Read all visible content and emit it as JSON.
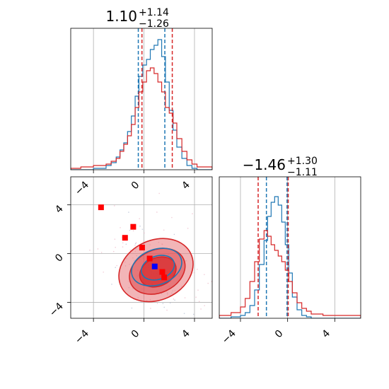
{
  "chart_data": [
    {
      "type": "histogram",
      "panel": "top-left marginal",
      "title": {
        "value": "1.10",
        "upper": "+1.14",
        "lower": "−1.26"
      },
      "xlim": [
        -5.8,
        5.4
      ],
      "xticks": [
        -4,
        0,
        4
      ],
      "xtick_labels": [
        "−4",
        "0",
        "4"
      ],
      "grid": true,
      "series": [
        {
          "color": "#1f77b4",
          "quantile_lines": [
            -0.45,
            1.65
          ],
          "bins_x": [
            -5.8,
            -5.0,
            -4.0,
            -3.0,
            -2.6,
            -2.2,
            -1.9,
            -1.6,
            -1.3,
            -1.0,
            -0.7,
            -0.4,
            -0.1,
            0.2,
            0.5,
            0.8,
            1.1,
            1.4,
            1.7,
            2.0,
            2.3,
            2.6,
            3.0,
            3.4,
            3.8,
            4.2,
            5.4
          ],
          "counts": [
            0,
            0,
            0.01,
            0.03,
            0.05,
            0.09,
            0.14,
            0.19,
            0.27,
            0.38,
            0.52,
            0.66,
            0.74,
            0.78,
            0.85,
            0.88,
            0.92,
            0.8,
            0.62,
            0.42,
            0.28,
            0.16,
            0.08,
            0.03,
            0.01,
            0.0
          ]
        },
        {
          "color": "#d62728",
          "quantile_lines": [
            -0.16,
            2.24
          ],
          "bins_x": [
            -5.8,
            -5.0,
            -4.0,
            -3.0,
            -2.6,
            -2.2,
            -1.9,
            -1.6,
            -1.3,
            -1.0,
            -0.7,
            -0.4,
            -0.1,
            0.2,
            0.5,
            0.8,
            1.1,
            1.4,
            1.7,
            2.0,
            2.3,
            2.6,
            3.0,
            3.4,
            3.8,
            4.2,
            5.4
          ],
          "counts": [
            0.01,
            0.02,
            0.03,
            0.04,
            0.06,
            0.08,
            0.13,
            0.18,
            0.24,
            0.32,
            0.44,
            0.55,
            0.62,
            0.7,
            0.72,
            0.68,
            0.62,
            0.55,
            0.44,
            0.4,
            0.33,
            0.22,
            0.13,
            0.07,
            0.04,
            0.02
          ]
        }
      ]
    },
    {
      "type": "histogram",
      "panel": "bottom-right marginal",
      "title": {
        "value": "−1.46",
        "upper": "+1.30",
        "lower": "−1.11"
      },
      "xlim": [
        -5.8,
        6.2
      ],
      "xticks": [
        -4,
        0,
        4
      ],
      "xtick_labels": [
        "−4",
        "0",
        "4"
      ],
      "grid": true,
      "series": [
        {
          "color": "#1f77b4",
          "quantile_lines": [
            -1.8,
            -0.05
          ],
          "bins_x": [
            -5.8,
            -4.8,
            -4.0,
            -3.6,
            -3.2,
            -2.8,
            -2.4,
            -2.0,
            -1.7,
            -1.4,
            -1.1,
            -0.8,
            -0.5,
            -0.2,
            0.1,
            0.4,
            0.8,
            1.2,
            1.6,
            2.0,
            3.0,
            6.2
          ],
          "counts": [
            0,
            0.01,
            0.02,
            0.04,
            0.09,
            0.2,
            0.38,
            0.55,
            0.72,
            0.82,
            0.86,
            0.8,
            0.68,
            0.52,
            0.32,
            0.15,
            0.06,
            0.02,
            0.01,
            0,
            0
          ]
        },
        {
          "color": "#d62728",
          "quantile_lines": [
            -2.5,
            0.05
          ],
          "bins_x": [
            -5.8,
            -4.8,
            -4.0,
            -3.6,
            -3.2,
            -2.8,
            -2.4,
            -2.0,
            -1.7,
            -1.4,
            -1.1,
            -0.8,
            -0.5,
            -0.2,
            0.1,
            0.4,
            0.8,
            1.2,
            1.6,
            2.0,
            3.0,
            6.2
          ],
          "counts": [
            0.02,
            0.04,
            0.08,
            0.14,
            0.26,
            0.4,
            0.56,
            0.62,
            0.58,
            0.52,
            0.48,
            0.44,
            0.4,
            0.34,
            0.26,
            0.18,
            0.11,
            0.07,
            0.05,
            0.03,
            0.02
          ]
        }
      ]
    },
    {
      "type": "scatter",
      "panel": "bottom-left joint",
      "xlim": [
        -5.8,
        5.4
      ],
      "ylim": [
        -5.3,
        6.3
      ],
      "xticks": [
        -4,
        0,
        4
      ],
      "xtick_labels": [
        "−4",
        "0",
        "4"
      ],
      "yticks": [
        -4,
        0,
        4
      ],
      "ytick_labels": [
        "−4",
        "0",
        "4"
      ],
      "grid": true,
      "contours": [
        {
          "color": "#d62728",
          "fill": "#e8797b",
          "opacity": 0.55,
          "cx": 0.95,
          "cy": -1.35,
          "rx": 3.05,
          "ry": 2.45,
          "rot": -25
        },
        {
          "color": "#d62728",
          "fill": "#de4f51",
          "opacity": 0.6,
          "cx": 1.05,
          "cy": -1.45,
          "rx": 2.3,
          "ry": 1.75,
          "rot": -25
        },
        {
          "color": "#d62728",
          "fill": "#d62728",
          "opacity": 0.7,
          "cx": 1.1,
          "cy": -1.5,
          "rx": 1.5,
          "ry": 1.15,
          "rot": -25
        },
        {
          "color": "#1f77b4",
          "fill": "none",
          "opacity": 1,
          "cx": 1.0,
          "cy": -1.1,
          "rx": 2.05,
          "ry": 1.45,
          "rot": -20
        },
        {
          "color": "#1f77b4",
          "fill": "none",
          "opacity": 1,
          "cx": 1.1,
          "cy": -1.15,
          "rx": 1.35,
          "ry": 0.95,
          "rot": -20
        }
      ],
      "markers": [
        {
          "color": "#ff0000",
          "x": -3.4,
          "y": 3.8
        },
        {
          "color": "#ff0000",
          "x": -0.85,
          "y": 2.2
        },
        {
          "color": "#ff0000",
          "x": -1.5,
          "y": 1.3
        },
        {
          "color": "#ff0000",
          "x": -0.15,
          "y": 0.5
        },
        {
          "color": "#ff0000",
          "x": 0.45,
          "y": -0.4
        },
        {
          "color": "#ff0000",
          "x": 1.45,
          "y": -1.5
        },
        {
          "color": "#ff0000",
          "x": 1.6,
          "y": -1.95
        },
        {
          "color": "#0000ff",
          "x": 0.85,
          "y": -1.05
        }
      ]
    }
  ]
}
